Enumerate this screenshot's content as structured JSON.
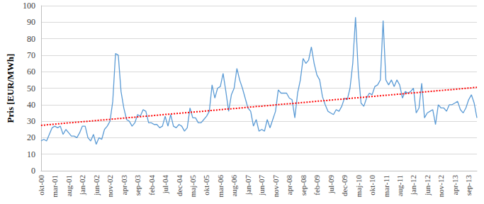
{
  "chart_data": {
    "type": "line",
    "y_label": "Pris [EUR/MWh]",
    "categories": [
      "okt-00",
      null,
      null,
      null,
      null,
      "mar-01",
      null,
      null,
      null,
      null,
      "aug-01",
      null,
      null,
      null,
      null,
      "jan-02",
      null,
      null,
      null,
      null,
      "jun-02",
      null,
      null,
      null,
      null,
      "nov-02",
      null,
      null,
      null,
      null,
      "apr-03",
      null,
      null,
      null,
      null,
      "sep-03",
      null,
      null,
      null,
      null,
      "feb-04",
      null,
      null,
      null,
      null,
      "jul-04",
      null,
      null,
      null,
      null,
      "dec-04",
      null,
      null,
      null,
      null,
      "maj-05",
      null,
      null,
      null,
      null,
      "okt-05",
      null,
      null,
      null,
      null,
      "mar-06",
      null,
      null,
      null,
      null,
      "aug-06",
      null,
      null,
      null,
      null,
      "jan-07",
      null,
      null,
      null,
      null,
      "jun-07",
      null,
      null,
      null,
      null,
      "nov-07",
      null,
      null,
      null,
      null,
      "apr-08",
      null,
      null,
      null,
      null,
      "sep-08",
      null,
      null,
      null,
      null,
      "feb-09",
      null,
      null,
      null,
      null,
      "jul-09",
      null,
      null,
      null,
      null,
      "dec-09",
      null,
      null,
      null,
      null,
      "maj-10",
      null,
      null,
      null,
      null,
      "okt-10",
      null,
      null,
      null,
      null,
      "mar-11",
      null,
      null,
      null,
      null,
      "aug-11",
      null,
      null,
      null,
      null,
      "jan-12",
      null,
      null,
      null,
      null,
      "jun-12",
      null,
      null,
      null,
      null,
      "nov-12",
      null,
      null,
      null,
      null,
      "apr-13",
      null,
      null,
      null,
      null,
      "sep-13",
      null,
      null,
      null
    ],
    "series": [
      {
        "color": "#5b9bd5",
        "line_style": "solid",
        "values": [
          18,
          19,
          18,
          22,
          26,
          27,
          26,
          27,
          22,
          25,
          23,
          21,
          21,
          20,
          23,
          27,
          27,
          20,
          18,
          22,
          16,
          20,
          19,
          25,
          27,
          30,
          42,
          71,
          70,
          48,
          38,
          31,
          30,
          27,
          29,
          34,
          33,
          37,
          36,
          29,
          29,
          28,
          28,
          26,
          27,
          33,
          27,
          34,
          27,
          26,
          28,
          27,
          24,
          26,
          38,
          32,
          32,
          29,
          29,
          31,
          33,
          36,
          52,
          44,
          50,
          51,
          59,
          48,
          36,
          46,
          50,
          62,
          55,
          50,
          44,
          38,
          36,
          27,
          31,
          24,
          25,
          24,
          31,
          26,
          31,
          36,
          49,
          47,
          47,
          47,
          44,
          43,
          32,
          47,
          55,
          68,
          65,
          67,
          75,
          65,
          58,
          55,
          45,
          40,
          36,
          35,
          34,
          37,
          36,
          39,
          44,
          43,
          50,
          65,
          93,
          60,
          41,
          39,
          44,
          47,
          46,
          51,
          52,
          55,
          91,
          55,
          52,
          55,
          51,
          55,
          52,
          44,
          48,
          47,
          48,
          50,
          35,
          38,
          53,
          32,
          35,
          36,
          37,
          28,
          40,
          38,
          38,
          36,
          40,
          40,
          41,
          42,
          37,
          35,
          38,
          43,
          46,
          41,
          32
        ]
      },
      {
        "color": "#ff0000",
        "line_style": "dotted",
        "values": [
          27.5,
          27.6,
          27.8,
          27.9,
          28.1,
          28.2,
          28.4,
          28.5,
          28.7,
          28.8,
          29.0,
          29.1,
          29.2,
          29.4,
          29.5,
          29.7,
          29.8,
          30.0,
          30.1,
          30.3,
          30.4,
          30.6,
          30.7,
          30.8,
          31.0,
          31.1,
          31.3,
          31.4,
          31.6,
          31.7,
          31.9,
          32.0,
          32.2,
          32.3,
          32.4,
          32.6,
          32.7,
          32.9,
          33.0,
          33.2,
          33.3,
          33.5,
          33.6,
          33.8,
          33.9,
          34.1,
          34.2,
          34.3,
          34.5,
          34.6,
          34.8,
          34.9,
          35.1,
          35.2,
          35.4,
          35.5,
          35.7,
          35.8,
          35.9,
          36.1,
          36.2,
          36.4,
          36.5,
          36.7,
          36.8,
          37.0,
          37.1,
          37.3,
          37.4,
          37.5,
          37.7,
          37.8,
          38.0,
          38.1,
          38.3,
          38.4,
          38.6,
          38.7,
          38.9,
          39.0,
          39.1,
          39.3,
          39.4,
          39.6,
          39.7,
          39.9,
          40.0,
          40.2,
          40.3,
          40.5,
          40.6,
          40.7,
          40.9,
          41.0,
          41.2,
          41.3,
          41.5,
          41.6,
          41.8,
          41.9,
          42.1,
          42.2,
          42.3,
          42.5,
          42.6,
          42.8,
          42.9,
          43.1,
          43.2,
          43.4,
          43.5,
          43.7,
          43.8,
          44.0,
          44.1,
          44.2,
          44.4,
          44.5,
          44.7,
          44.8,
          45.0,
          45.1,
          45.3,
          45.4,
          45.6,
          45.7,
          45.8,
          46.0,
          46.1,
          46.3,
          46.4,
          46.6,
          46.7,
          46.9,
          47.0,
          47.2,
          47.3,
          47.4,
          47.6,
          47.7,
          47.9,
          48.0,
          48.2,
          48.3,
          48.5,
          48.6,
          48.8,
          48.9,
          49.0,
          49.2,
          49.3,
          49.5,
          49.6,
          49.8,
          49.9,
          50.1,
          50.2,
          50.4,
          50.5
        ]
      }
    ],
    "ylim": [
      0,
      100
    ],
    "yticks": [
      0,
      10,
      20,
      30,
      40,
      50,
      60,
      70,
      80,
      90,
      100
    ],
    "grid": true
  }
}
